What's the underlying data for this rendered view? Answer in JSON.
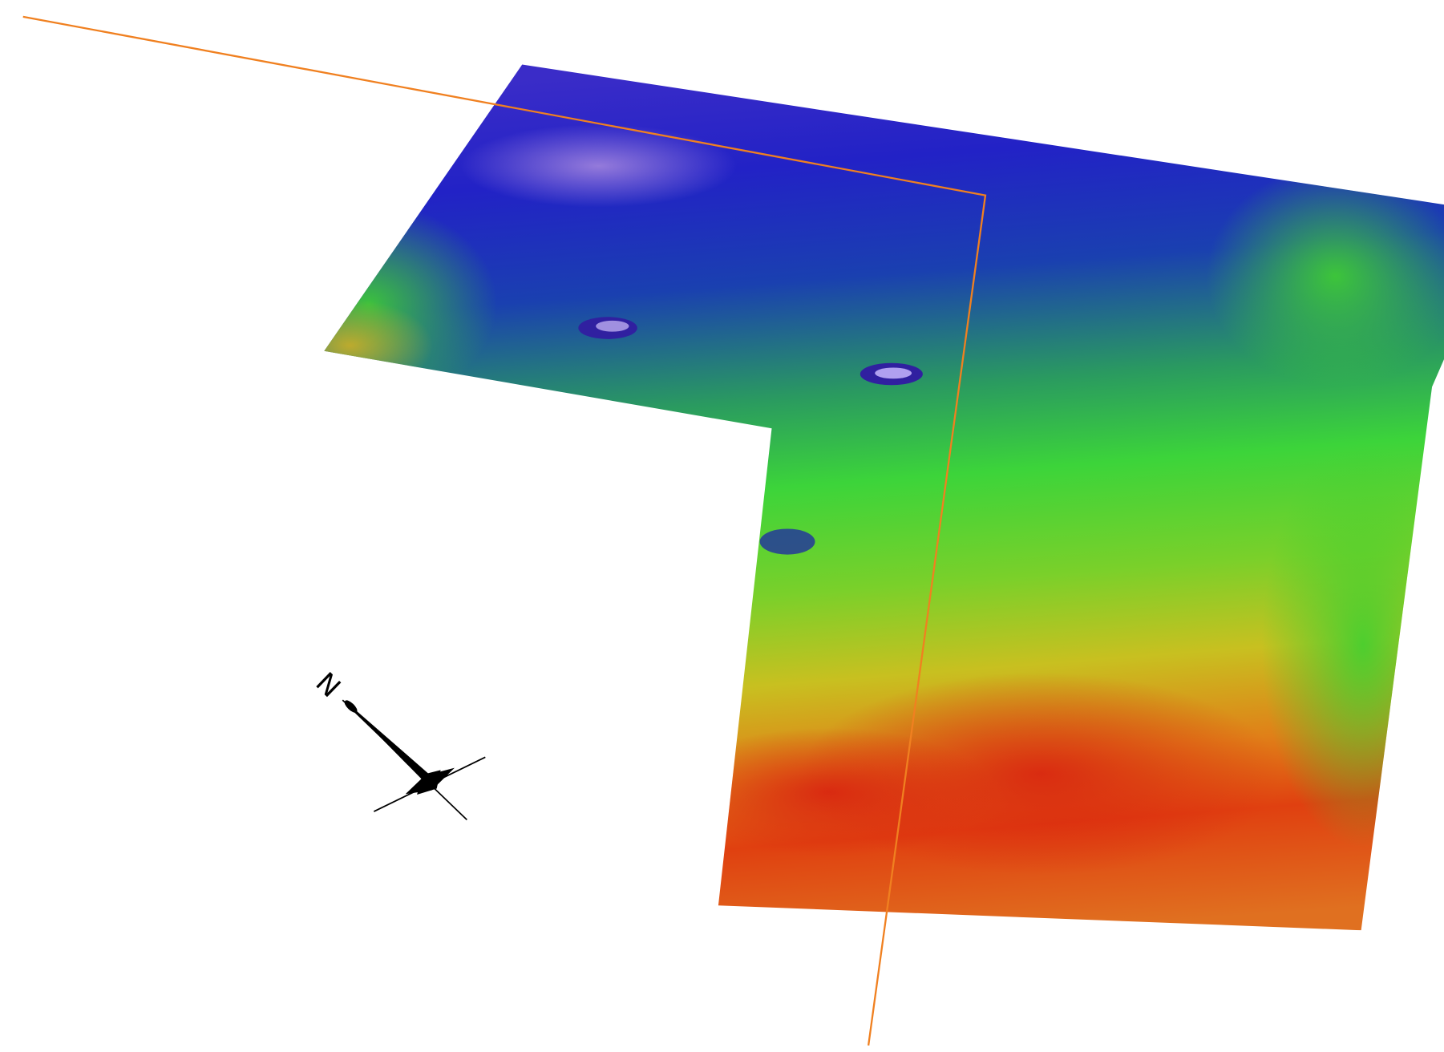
{
  "compass": {
    "label": "N"
  }
}
